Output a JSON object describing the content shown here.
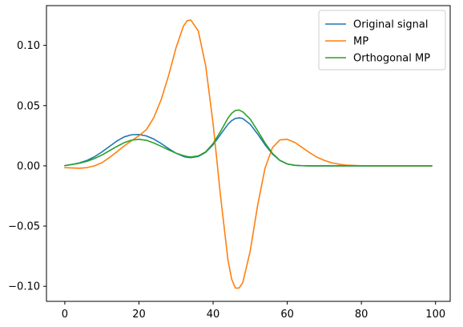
{
  "chart_data": {
    "type": "line",
    "title": "",
    "xlabel": "",
    "ylabel": "",
    "xlim": [
      -4.95,
      103.95
    ],
    "ylim": [
      -0.1125,
      0.133
    ],
    "xticks": [
      0,
      20,
      40,
      60,
      80,
      100
    ],
    "xtick_labels": [
      "0",
      "20",
      "40",
      "60",
      "80",
      "100"
    ],
    "yticks": [
      -0.1,
      -0.05,
      0.0,
      0.05,
      0.1
    ],
    "ytick_labels": [
      "−0.10",
      "−0.05",
      "0.00",
      "0.05",
      "0.10"
    ],
    "grid": false,
    "legend_position": "top-right",
    "x": [
      0,
      2,
      4,
      6,
      8,
      10,
      12,
      14,
      16,
      18,
      20,
      22,
      24,
      26,
      28,
      30,
      32,
      33,
      34,
      36,
      38,
      40,
      42,
      44,
      45,
      46,
      47,
      48,
      50,
      52,
      54,
      56,
      58,
      60,
      62,
      64,
      66,
      68,
      70,
      72,
      74,
      76,
      78,
      80,
      85,
      90,
      95,
      99
    ],
    "series": [
      {
        "name": "Original signal",
        "color": "#1f77b4",
        "values": [
          0.0002,
          0.0012,
          0.0025,
          0.0045,
          0.0075,
          0.0115,
          0.016,
          0.0205,
          0.024,
          0.0258,
          0.026,
          0.0248,
          0.0222,
          0.0185,
          0.0143,
          0.0105,
          0.0078,
          0.007,
          0.0068,
          0.0078,
          0.0112,
          0.0175,
          0.026,
          0.0345,
          0.0375,
          0.0393,
          0.0398,
          0.0393,
          0.0345,
          0.0265,
          0.0175,
          0.0098,
          0.0045,
          0.0016,
          0.0005,
          0.0001,
          0.0,
          0.0,
          0.0,
          0.0,
          0.0,
          0.0,
          0.0,
          0.0,
          0.0,
          0.0,
          0.0,
          0.0
        ]
      },
      {
        "name": "MP",
        "color": "#ff7f0e",
        "values": [
          -0.0015,
          -0.0018,
          -0.002,
          -0.0015,
          0.0,
          0.0025,
          0.0068,
          0.0115,
          0.0165,
          0.0208,
          0.025,
          0.03,
          0.04,
          0.055,
          0.075,
          0.098,
          0.116,
          0.1205,
          0.121,
          0.112,
          0.083,
          0.035,
          -0.025,
          -0.078,
          -0.094,
          -0.1015,
          -0.1015,
          -0.097,
          -0.071,
          -0.033,
          -0.002,
          0.015,
          0.0215,
          0.022,
          0.0195,
          0.0153,
          0.011,
          0.0072,
          0.0045,
          0.0025,
          0.0013,
          0.0006,
          0.0003,
          0.0001,
          0.0,
          0.0,
          0.0,
          0.0
        ]
      },
      {
        "name": "Orthogonal MP",
        "color": "#2ca02c",
        "values": [
          0.0002,
          0.0011,
          0.0022,
          0.0038,
          0.006,
          0.009,
          0.0125,
          0.016,
          0.0192,
          0.0213,
          0.022,
          0.0212,
          0.019,
          0.0162,
          0.0132,
          0.0105,
          0.0085,
          0.0077,
          0.0074,
          0.0082,
          0.0116,
          0.0185,
          0.0285,
          0.0395,
          0.0436,
          0.046,
          0.0463,
          0.0448,
          0.0388,
          0.0292,
          0.019,
          0.0104,
          0.0045,
          0.0015,
          0.0004,
          0.0001,
          0.0,
          0.0,
          0.0,
          0.0,
          0.0,
          0.0,
          0.0,
          0.0,
          0.0,
          0.0,
          0.0,
          0.0
        ]
      }
    ]
  }
}
